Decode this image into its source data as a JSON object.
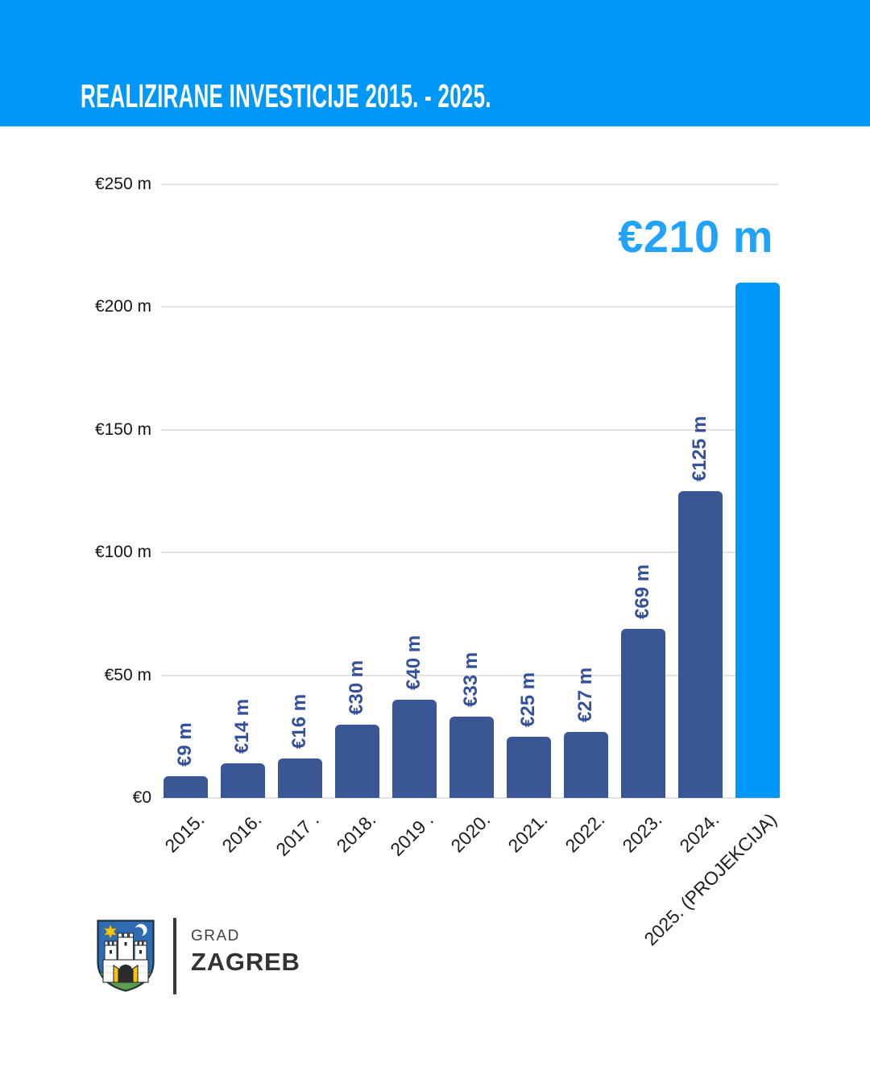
{
  "header": {
    "title": "REALIZIRANE INVESTICIJE 2015. - 2025."
  },
  "chart_data": {
    "type": "bar",
    "title": "REALIZIRANE INVESTICIJE 2015. - 2025.",
    "unit": "EUR millions",
    "categories": [
      "2015.",
      "2016.",
      "2017 .",
      "2018.",
      "2019 .",
      "2020.",
      "2021.",
      "2022.",
      "2023.",
      "2024.",
      "2025. (PROJEKCIJA)"
    ],
    "values": [
      9,
      14,
      16,
      30,
      40,
      33,
      25,
      27,
      69,
      125,
      210
    ],
    "bar_labels": [
      "€9 m",
      "€14 m",
      "€16 m",
      "€30 m",
      "€40 m",
      "€33 m",
      "€25 m",
      "€27 m",
      "€69 m",
      "€125 m",
      "€210 m"
    ],
    "highlight_index": 10,
    "highlight_value_label": "€210 m",
    "y_ticks": [
      {
        "label": "€250 m",
        "value": 250
      },
      {
        "label": "€200 m",
        "value": 200
      },
      {
        "label": "€150 m",
        "value": 150
      },
      {
        "label": "€100 m",
        "value": 100
      },
      {
        "label": "€50 m",
        "value": 50
      },
      {
        "label": "€0",
        "value": 0
      }
    ],
    "ylim": [
      0,
      250
    ],
    "grid": true,
    "legend": null,
    "xlabel": "",
    "ylabel": ""
  },
  "footer": {
    "org_name_small": "GRAD",
    "org_name_large": "ZAGREB",
    "logo": "zagreb-coat-of-arms"
  },
  "colors": {
    "header_bg": "#0098F8",
    "bar": "#3A5694",
    "bar_highlight": "#0098F8",
    "bar_label": "#35519B",
    "highlight_text": "#22A2F8",
    "gridline": "#E3E3E3",
    "axis_text": "#151515",
    "shield_blue": "#2E6DB4",
    "shield_green": "#5E9E53",
    "shield_yellow": "#F6C50F"
  }
}
